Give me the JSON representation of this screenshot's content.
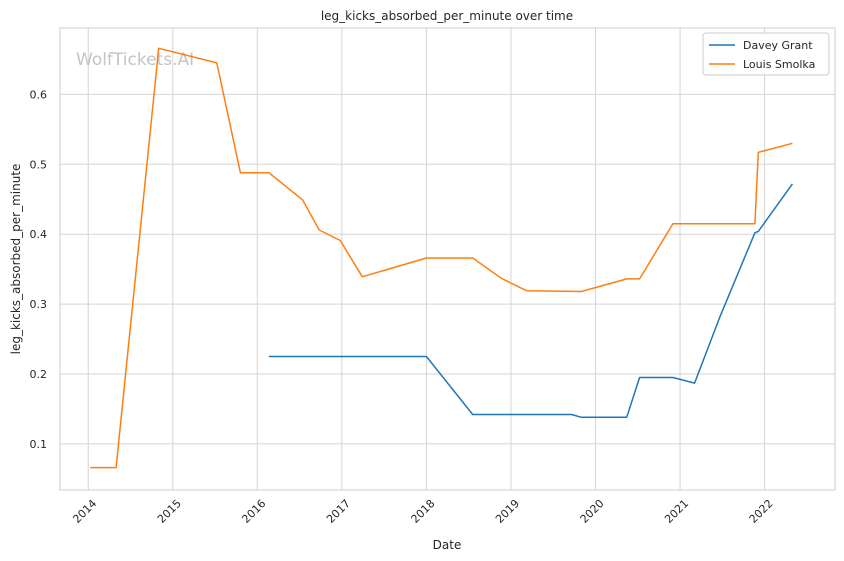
{
  "chart_data": {
    "type": "line",
    "title": "leg_kicks_absorbed_per_minute over time",
    "xlabel": "Date",
    "ylabel": "leg_kicks_absorbed_per_minute",
    "watermark": "WolfTickets.AI",
    "xlim": [
      "2013-09-01",
      "2022-11-01"
    ],
    "ylim": [
      0.034,
      0.695
    ],
    "x_ticks": [
      "2014",
      "2015",
      "2016",
      "2017",
      "2018",
      "2019",
      "2020",
      "2021",
      "2022"
    ],
    "y_ticks": [
      "0.1",
      "0.2",
      "0.3",
      "0.4",
      "0.5",
      "0.6"
    ],
    "grid": true,
    "legend_position": "top-right",
    "series": [
      {
        "name": "Davey Grant",
        "color": "#1f77b4",
        "points": [
          [
            "2016-02-20",
            0.225
          ],
          [
            "2018-01-01",
            0.225
          ],
          [
            "2018-07-20",
            0.142
          ],
          [
            "2019-09-20",
            0.142
          ],
          [
            "2019-11-01",
            0.138
          ],
          [
            "2020-05-15",
            0.138
          ],
          [
            "2020-07-10",
            0.195
          ],
          [
            "2020-12-01",
            0.195
          ],
          [
            "2021-03-05",
            0.187
          ],
          [
            "2021-06-20",
            0.28
          ],
          [
            "2021-11-20",
            0.402
          ],
          [
            "2021-12-05",
            0.404
          ],
          [
            "2022-05-01",
            0.472
          ]
        ]
      },
      {
        "name": "Louis Smolka",
        "color": "#ff7f0e",
        "points": [
          [
            "2014-01-10",
            0.066
          ],
          [
            "2014-05-01",
            0.066
          ],
          [
            "2014-11-01",
            0.666
          ],
          [
            "2015-07-10",
            0.645
          ],
          [
            "2015-10-20",
            0.488
          ],
          [
            "2016-02-20",
            0.488
          ],
          [
            "2016-07-15",
            0.449
          ],
          [
            "2016-09-25",
            0.406
          ],
          [
            "2016-12-25",
            0.391
          ],
          [
            "2017-03-30",
            0.339
          ],
          [
            "2018-01-01",
            0.366
          ],
          [
            "2018-07-20",
            0.366
          ],
          [
            "2018-11-20",
            0.337
          ],
          [
            "2019-03-10",
            0.319
          ],
          [
            "2019-11-01",
            0.318
          ],
          [
            "2020-05-15",
            0.336
          ],
          [
            "2020-07-10",
            0.336
          ],
          [
            "2020-12-01",
            0.415
          ],
          [
            "2021-11-20",
            0.415
          ],
          [
            "2021-12-05",
            0.517
          ],
          [
            "2022-05-01",
            0.53
          ]
        ]
      }
    ]
  }
}
